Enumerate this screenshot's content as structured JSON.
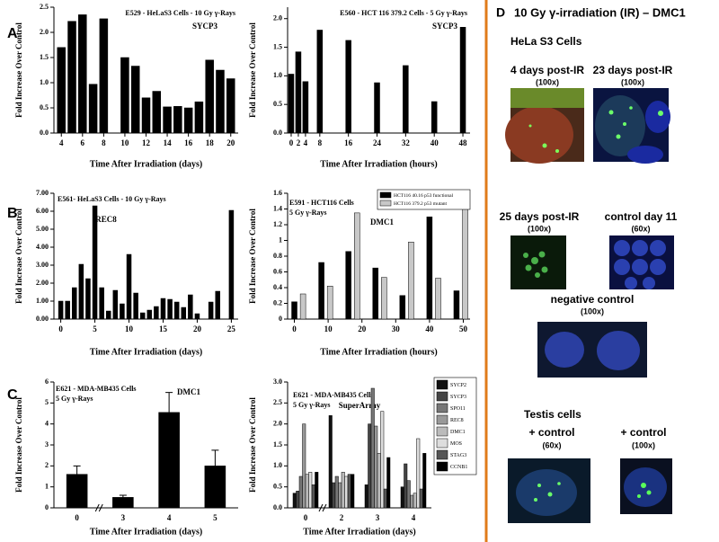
{
  "panel_labels": [
    "A",
    "B",
    "C"
  ],
  "chart_data": [
    {
      "type": "bar",
      "title": "E529 - HeLaS3 Cells - 10 Gy γ-Rays",
      "annotation": "SYCP3",
      "x_label": "Time After Irradiation (days)",
      "y_label": "Fold Increase Over Control",
      "x": [
        4,
        5,
        6,
        7,
        8,
        10,
        11,
        12,
        13,
        14,
        15,
        16,
        17,
        18,
        19,
        20
      ],
      "values": [
        1.7,
        2.22,
        2.35,
        0.97,
        2.27,
        1.5,
        1.33,
        0.7,
        0.83,
        0.52,
        0.53,
        0.5,
        0.62,
        1.45,
        1.25,
        1.08
      ],
      "color": "#000000",
      "xlim": [
        3.3,
        20.7
      ],
      "xticks": [
        4,
        6,
        8,
        10,
        12,
        14,
        16,
        18,
        20
      ],
      "ylim": [
        0,
        2.5
      ],
      "yticks": [
        {
          "value": 0,
          "label": "0.0"
        },
        0.5,
        {
          "value": 1,
          "label": "1.0"
        },
        1.5,
        {
          "value": 2,
          "label": "2.0"
        },
        2.5
      ]
    },
    {
      "type": "bar",
      "title": "E560 - HCT 116 379.2 Cells - 5 Gy γ-Rays",
      "annotation": "SYCP3",
      "x_label": "Time After Irradiation (hours)",
      "y_label": "Fold Increase Over Control",
      "x": [
        0,
        2,
        4,
        8,
        16,
        24,
        32,
        40,
        48
      ],
      "values": [
        1.03,
        1.42,
        0.9,
        1.8,
        1.62,
        0.88,
        1.18,
        0.55,
        1.85
      ],
      "color": "#000000",
      "xlim": [
        -1,
        50
      ],
      "xticks": [
        0,
        2,
        4,
        8,
        16,
        24,
        32,
        40,
        48
      ],
      "ylim": [
        0,
        2.2
      ],
      "yticks": [
        {
          "value": 0,
          "label": "0.0"
        },
        0.5,
        {
          "value": 1,
          "label": "1.0"
        },
        1.5,
        {
          "value": 2,
          "label": "2.0"
        }
      ]
    },
    {
      "type": "bar",
      "title": "E561- HeLaS3 Cells - 10 Gy γ-Rays",
      "annotation": "REC8",
      "x_label": "Time After Irradiation (days)",
      "y_label": "Fold Increase Over Control",
      "x": [
        0,
        1,
        2,
        3,
        4,
        5,
        6,
        7,
        8,
        9,
        10,
        11,
        12,
        13,
        14,
        15,
        16,
        17,
        18,
        19,
        20,
        22,
        23,
        25
      ],
      "values": [
        1.0,
        1.0,
        1.75,
        3.05,
        2.25,
        6.3,
        1.75,
        0.45,
        1.6,
        0.85,
        3.6,
        1.45,
        0.35,
        0.5,
        0.7,
        1.15,
        1.1,
        0.95,
        0.65,
        1.35,
        0.3,
        0.95,
        1.55,
        6.05
      ],
      "color": "#000000",
      "xlim": [
        -1,
        26
      ],
      "xticks": [
        0,
        5,
        10,
        15,
        20,
        25
      ],
      "ylim": [
        0,
        7
      ],
      "yticks": [
        {
          "value": 0,
          "label": "0.00"
        },
        {
          "value": 1,
          "label": "1.00"
        },
        {
          "value": 2,
          "label": "2.00"
        },
        {
          "value": 3,
          "label": "3.00"
        },
        {
          "value": 4,
          "label": "4.00"
        },
        {
          "value": 5,
          "label": "5.00"
        },
        {
          "value": 6,
          "label": "6.00"
        },
        {
          "value": 7,
          "label": "7.00"
        }
      ]
    },
    {
      "type": "grouped_bar",
      "title": "E591 - HCT116 Cells",
      "subtitle": "5 Gy γ-Rays",
      "annotation": "DMC1",
      "x_label": "Time After Irradiation (hours)",
      "y_label": "Fold Increase Over Control",
      "x": [
        0,
        8,
        16,
        24,
        32,
        40,
        48
      ],
      "series": [
        {
          "name": "HCT116 40.16 p53 functional",
          "color": "#000000",
          "values": [
            0.22,
            0.72,
            0.86,
            0.65,
            0.3,
            1.3,
            0.36
          ]
        },
        {
          "name": "HCT116 379.2 p53 mutant",
          "color": "#c8c8c8",
          "values": [
            0.32,
            0.42,
            1.35,
            0.53,
            0.98,
            0.52,
            1.48
          ]
        }
      ],
      "xlim": [
        -2,
        52
      ],
      "xticks": [
        0,
        10,
        20,
        30,
        40,
        50
      ],
      "ylim": [
        0,
        1.6
      ],
      "yticks": [
        0,
        0.2,
        0.4,
        0.6,
        0.8,
        1,
        1.2,
        1.4,
        1.6
      ]
    },
    {
      "type": "bar",
      "title": "E621 - MDA-MB435 Cells",
      "subtitle": "5 Gy γ-Rays",
      "annotation": "DMC1",
      "x_label": "Time After Irradiation (days)",
      "y_label": "Fold Increase Over Control",
      "categories": [
        "0",
        "3",
        "4",
        "5"
      ],
      "values": [
        1.6,
        0.5,
        4.55,
        2.0
      ],
      "errors": [
        0.4,
        0.1,
        0.95,
        0.75
      ],
      "color": "#000000",
      "ylim": [
        0,
        6
      ],
      "yticks": [
        0,
        1,
        2,
        3,
        4,
        5,
        6
      ]
    },
    {
      "type": "grouped_bar",
      "title": "E621 - MDA-MB435 Cells",
      "subtitle": "5 Gy γ-Rays",
      "annotation": "SuperArray",
      "x_label": "Time After Irradiation (days)",
      "y_label": "Fold Increase Over Control",
      "categories": [
        "0",
        "2",
        "3",
        "4"
      ],
      "series": [
        {
          "name": "SYCP2",
          "color": "#111111",
          "values": [
            0.35,
            2.2,
            0.55,
            0.5
          ]
        },
        {
          "name": "SYCP3",
          "color": "#444444",
          "values": [
            0.4,
            0.6,
            2.0,
            1.05
          ]
        },
        {
          "name": "SPO11",
          "color": "#777777",
          "values": [
            0.75,
            0.75,
            2.85,
            0.65
          ]
        },
        {
          "name": "REC8",
          "color": "#999999",
          "values": [
            2.0,
            0.6,
            1.95,
            0.3
          ]
        },
        {
          "name": "DMC1",
          "color": "#bbbbbb",
          "values": [
            0.8,
            0.85,
            1.3,
            0.35
          ]
        },
        {
          "name": "MOS",
          "color": "#dddddd",
          "values": [
            0.85,
            0.75,
            2.3,
            1.65
          ]
        },
        {
          "name": "STAG3",
          "color": "#555555",
          "values": [
            0.55,
            0.8,
            0.45,
            0.45
          ]
        },
        {
          "name": "CCNB1",
          "color": "#000000",
          "values": [
            0.85,
            0.8,
            1.2,
            1.3
          ]
        }
      ],
      "ylim": [
        0,
        3
      ],
      "yticks": [
        {
          "value": 0,
          "label": "0.0"
        },
        0.5,
        {
          "value": 1,
          "label": "1.0"
        },
        1.5,
        {
          "value": 2,
          "label": "2.0"
        },
        2.5,
        {
          "value": 3,
          "label": "3.0"
        }
      ]
    }
  ],
  "panel_d": {
    "letter": "D",
    "title": "10 Gy γ-irradiation (IR) – DMC1",
    "cells": "HeLa S3 Cells",
    "images": [
      {
        "caption": "4 days post-IR",
        "magnification": "(100x)"
      },
      {
        "caption": "23 days post-IR",
        "magnification": "(100x)"
      },
      {
        "caption": "25 days post-IR",
        "magnification": "(100x)"
      },
      {
        "caption": "control day 11",
        "magnification": "(60x)"
      },
      {
        "caption": "negative control",
        "magnification": "(100x)"
      }
    ],
    "testis": "Testis cells",
    "testis_images": [
      {
        "caption": "+ control",
        "magnification": "(60x)"
      },
      {
        "caption": "+ control",
        "magnification": "(100x)"
      }
    ]
  }
}
